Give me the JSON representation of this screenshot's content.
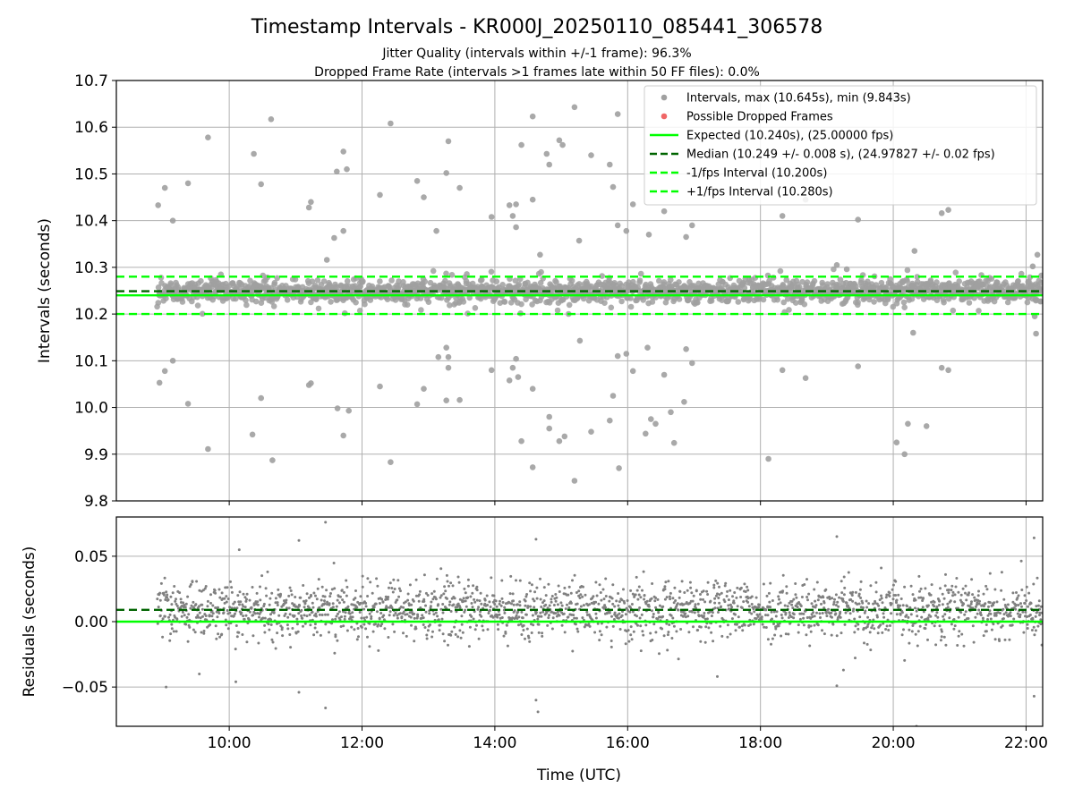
{
  "figure": {
    "title": "Timestamp Intervals - KR000J_20250110_085441_306578",
    "subtitle_line1": "Jitter Quality (intervals within +/-1 frame): 96.3%",
    "subtitle_line2": "Dropped Frame Rate (intervals >1 frames late within 50 FF files): 0.0%",
    "xlabel": "Time (UTC)"
  },
  "chart_data": [
    {
      "id": "intervals",
      "type": "scatter",
      "ylabel": "Intervals (seconds)",
      "x_ticks": [
        "10:00",
        "12:00",
        "14:00",
        "16:00",
        "18:00",
        "20:00",
        "22:00"
      ],
      "x_tick_hours": [
        10,
        12,
        14,
        16,
        18,
        20,
        22
      ],
      "xlim_hours": [
        8.3,
        22.25
      ],
      "ylim": [
        9.8,
        10.7
      ],
      "y_ticks": [
        "9.8",
        "9.9",
        "10.0",
        "10.1",
        "10.2",
        "10.3",
        "10.4",
        "10.5",
        "10.6",
        "10.7"
      ],
      "grid": true,
      "legend_placement": "upper right",
      "legend": [
        {
          "label": "Intervals, max (10.645s), min (9.843s)",
          "kind": "marker",
          "color": "#a0a0a0"
        },
        {
          "label": "Possible Dropped Frames",
          "kind": "marker",
          "color": "#f06666"
        },
        {
          "label": "Expected (10.240s), (25.00000 fps)",
          "kind": "solid",
          "color": "#00ff00"
        },
        {
          "label": "Median (10.249 +/- 0.008 s), (24.97827 +/- 0.02 fps)",
          "kind": "dashed",
          "color": "#006400"
        },
        {
          "label": "-1/fps Interval (10.200s)",
          "kind": "dashed",
          "color": "#00ff00"
        },
        {
          "label": "+1/fps Interval (10.280s)",
          "kind": "dashed",
          "color": "#00ff00"
        }
      ],
      "series": {
        "start_hour": 8.92,
        "end_hour": 22.25,
        "max": 10.645,
        "min": 9.843,
        "median": 10.249,
        "outliers": [
          [
            8.93,
            10.433
          ],
          [
            8.95,
            10.053
          ],
          [
            9.03,
            10.47
          ],
          [
            9.03,
            10.078
          ],
          [
            9.15,
            10.4
          ],
          [
            9.15,
            10.1
          ],
          [
            9.38,
            10.48
          ],
          [
            9.38,
            10.008
          ],
          [
            9.68,
            10.578
          ],
          [
            9.68,
            9.911
          ],
          [
            10.37,
            10.543
          ],
          [
            10.35,
            9.942
          ],
          [
            10.48,
            10.478
          ],
          [
            10.48,
            10.02
          ],
          [
            10.63,
            10.617
          ],
          [
            10.65,
            9.887
          ],
          [
            11.2,
            10.428
          ],
          [
            11.23,
            10.44
          ],
          [
            11.2,
            10.048
          ],
          [
            11.23,
            10.052
          ],
          [
            11.47,
            10.316
          ],
          [
            11.58,
            10.363
          ],
          [
            11.62,
            10.505
          ],
          [
            11.72,
            10.548
          ],
          [
            11.77,
            10.51
          ],
          [
            11.72,
            10.378
          ],
          [
            11.63,
            9.998
          ],
          [
            11.72,
            9.94
          ],
          [
            11.8,
            9.993
          ],
          [
            12.27,
            10.455
          ],
          [
            12.27,
            10.045
          ],
          [
            12.43,
            10.608
          ],
          [
            12.43,
            9.883
          ],
          [
            12.83,
            10.485
          ],
          [
            12.93,
            10.45
          ],
          [
            13.12,
            10.378
          ],
          [
            13.3,
            10.57
          ],
          [
            13.27,
            10.502
          ],
          [
            13.47,
            10.47
          ],
          [
            12.83,
            10.007
          ],
          [
            12.93,
            10.04
          ],
          [
            13.15,
            10.108
          ],
          [
            13.27,
            10.128
          ],
          [
            13.3,
            10.108
          ],
          [
            13.3,
            10.085
          ],
          [
            13.27,
            10.015
          ],
          [
            13.47,
            10.016
          ],
          [
            13.95,
            10.408
          ],
          [
            14.22,
            10.433
          ],
          [
            14.32,
            10.435
          ],
          [
            14.27,
            10.41
          ],
          [
            14.32,
            10.386
          ],
          [
            13.95,
            10.08
          ],
          [
            14.22,
            10.058
          ],
          [
            14.27,
            10.085
          ],
          [
            14.32,
            10.104
          ],
          [
            14.35,
            10.065
          ],
          [
            14.4,
            10.562
          ],
          [
            14.57,
            10.623
          ],
          [
            14.57,
            10.445
          ],
          [
            14.68,
            10.327
          ],
          [
            14.78,
            10.543
          ],
          [
            14.82,
            10.52
          ],
          [
            14.4,
            9.928
          ],
          [
            14.57,
            10.04
          ],
          [
            14.57,
            9.872
          ],
          [
            14.82,
            9.98
          ],
          [
            14.82,
            9.955
          ],
          [
            14.97,
            10.572
          ],
          [
            15.02,
            10.562
          ],
          [
            15.2,
            10.643
          ],
          [
            15.27,
            10.357
          ],
          [
            14.97,
            9.928
          ],
          [
            15.05,
            9.938
          ],
          [
            15.2,
            9.843
          ],
          [
            15.28,
            10.143
          ],
          [
            15.45,
            10.54
          ],
          [
            15.45,
            9.948
          ],
          [
            15.73,
            10.52
          ],
          [
            15.78,
            10.472
          ],
          [
            15.85,
            10.628
          ],
          [
            15.85,
            10.39
          ],
          [
            15.98,
            10.378
          ],
          [
            15.73,
            9.972
          ],
          [
            15.78,
            10.025
          ],
          [
            15.85,
            10.11
          ],
          [
            15.87,
            9.87
          ],
          [
            15.98,
            10.115
          ],
          [
            16.08,
            10.435
          ],
          [
            16.32,
            10.37
          ],
          [
            16.08,
            10.078
          ],
          [
            16.3,
            10.128
          ],
          [
            16.27,
            9.944
          ],
          [
            16.35,
            9.975
          ],
          [
            16.42,
            9.965
          ],
          [
            16.55,
            10.42
          ],
          [
            16.55,
            10.07
          ],
          [
            16.65,
            9.99
          ],
          [
            16.7,
            9.924
          ],
          [
            16.88,
            10.365
          ],
          [
            16.97,
            10.39
          ],
          [
            16.88,
            10.125
          ],
          [
            16.97,
            10.095
          ],
          [
            16.85,
            10.012
          ],
          [
            18.33,
            10.41
          ],
          [
            18.12,
            9.89
          ],
          [
            18.33,
            10.08
          ],
          [
            18.68,
            10.445
          ],
          [
            18.68,
            10.063
          ],
          [
            19.15,
            10.305
          ],
          [
            19.47,
            10.402
          ],
          [
            19.3,
            10.296
          ],
          [
            19.47,
            10.088
          ],
          [
            20.05,
            9.925
          ],
          [
            20.22,
            9.965
          ],
          [
            20.3,
            10.16
          ],
          [
            20.32,
            10.335
          ],
          [
            20.17,
            9.9
          ],
          [
            20.5,
            9.96
          ],
          [
            20.73,
            10.416
          ],
          [
            20.83,
            10.423
          ],
          [
            20.73,
            10.085
          ],
          [
            20.83,
            10.08
          ],
          [
            22.17,
            10.327
          ],
          [
            22.1,
            10.302
          ],
          [
            22.13,
            10.195
          ],
          [
            22.15,
            10.158
          ]
        ]
      },
      "reference_lines": [
        {
          "name": "expected",
          "y": 10.24,
          "style": "solid",
          "color": "#00ff00"
        },
        {
          "name": "median",
          "y": 10.249,
          "style": "dashed",
          "color": "#006400"
        },
        {
          "name": "minus-1fps",
          "y": 10.2,
          "style": "dashed",
          "color": "#00ff00"
        },
        {
          "name": "plus-1fps",
          "y": 10.28,
          "style": "dashed",
          "color": "#00ff00"
        }
      ]
    },
    {
      "id": "residuals",
      "type": "scatter",
      "ylabel": "Residuals (seconds)",
      "xlim_hours": [
        8.3,
        22.25
      ],
      "ylim": [
        -0.08,
        0.08
      ],
      "y_tick_values": [
        -0.05,
        0.0,
        0.05
      ],
      "y_ticks": [
        "−0.05",
        "0.00",
        "0.05"
      ],
      "grid": true,
      "series": {
        "start_hour": 8.92,
        "end_hour": 22.25,
        "center": 0.009,
        "outliers": [
          [
            9.05,
            -0.05
          ],
          [
            9.55,
            -0.04
          ],
          [
            10.1,
            -0.046
          ],
          [
            10.15,
            0.055
          ],
          [
            11.05,
            0.062
          ],
          [
            11.05,
            -0.054
          ],
          [
            11.45,
            0.076
          ],
          [
            11.45,
            -0.066
          ],
          [
            14.62,
            0.063
          ],
          [
            14.62,
            -0.06
          ],
          [
            14.65,
            -0.069
          ],
          [
            17.35,
            -0.042
          ],
          [
            19.15,
            0.065
          ],
          [
            19.15,
            -0.049
          ],
          [
            19.25,
            -0.037
          ],
          [
            20.35,
            -0.08
          ],
          [
            22.12,
            0.064
          ],
          [
            22.12,
            -0.057
          ]
        ]
      },
      "reference_lines": [
        {
          "name": "expected",
          "y": 0.0,
          "style": "solid",
          "color": "#00ff00"
        },
        {
          "name": "median",
          "y": 0.009,
          "style": "dashed",
          "color": "#006400"
        }
      ]
    }
  ]
}
